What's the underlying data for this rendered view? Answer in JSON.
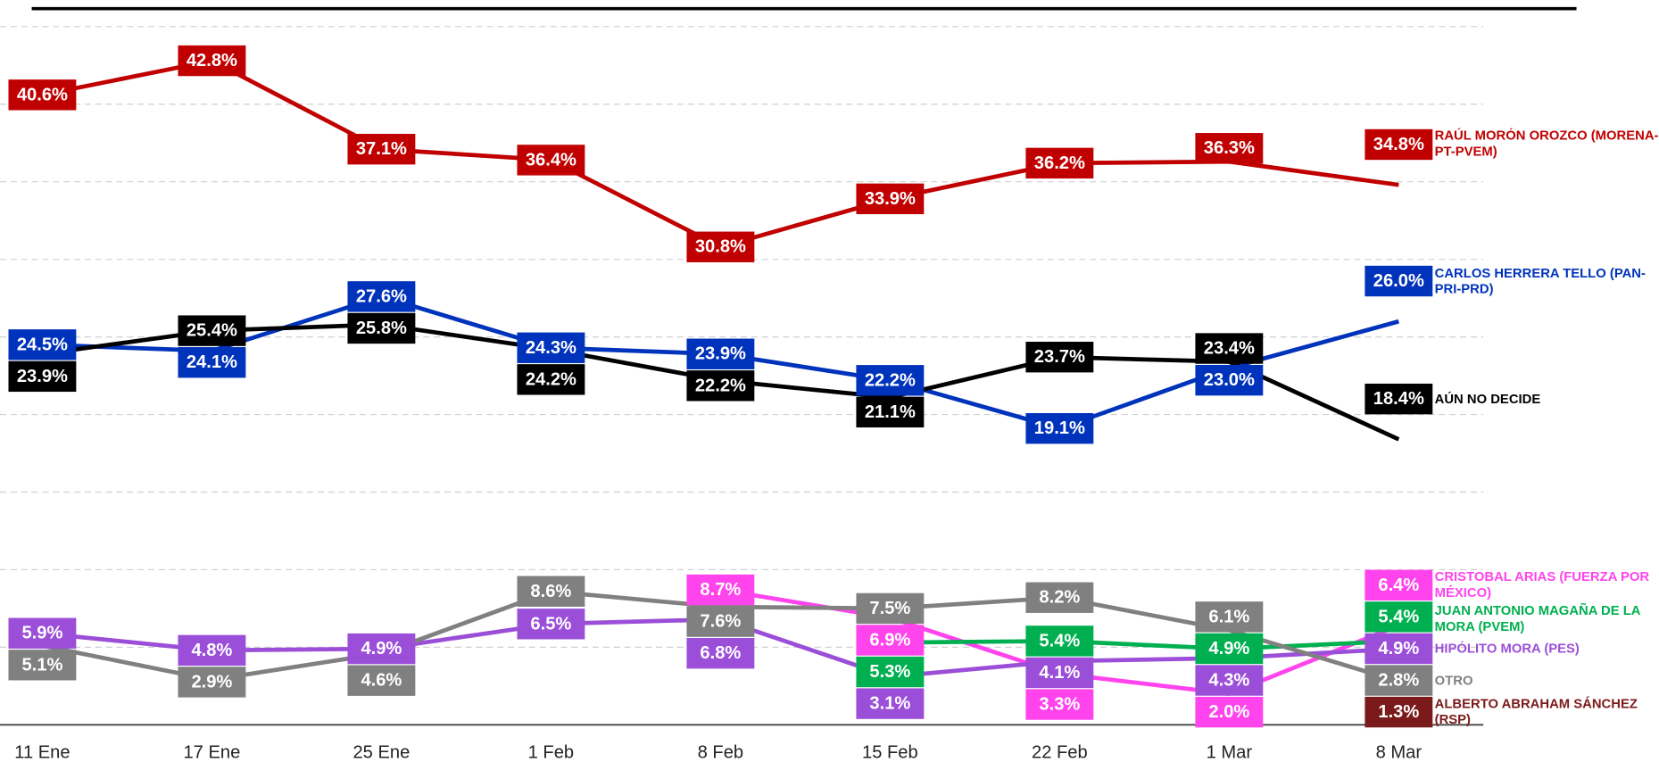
{
  "chart_data": {
    "type": "line",
    "categories": [
      "11 Ene",
      "17 Ene",
      "25 Ene",
      "1 Feb",
      "8 Feb",
      "15 Feb",
      "22 Feb",
      "1 Mar",
      "8 Mar"
    ],
    "ylim": [
      0,
      45
    ],
    "yticks": [
      0,
      5,
      10,
      15,
      20,
      25,
      30,
      35,
      40,
      45
    ],
    "grid": true,
    "series": [
      {
        "name": "RAÚL MORÓN OROZCO (MORENA-PT-PVEM)",
        "color": "#c00000",
        "values": [
          40.6,
          42.8,
          37.1,
          36.4,
          30.8,
          33.9,
          36.2,
          36.3,
          34.8
        ],
        "value_labels": [
          "40.6%",
          "42.8%",
          "37.1%",
          "36.4%",
          "30.8%",
          "33.9%",
          "36.2%",
          "36.3%",
          "34.8%"
        ]
      },
      {
        "name": "CARLOS HERRERA TELLO (PAN-PRI-PRD)",
        "color": "#0033bb",
        "values": [
          24.5,
          24.1,
          27.6,
          24.3,
          23.9,
          22.2,
          19.1,
          23.0,
          26.0
        ],
        "value_labels": [
          "24.5%",
          "24.1%",
          "27.6%",
          "24.3%",
          "23.9%",
          "22.2%",
          "19.1%",
          "23.0%",
          "26.0%"
        ]
      },
      {
        "name": "AÚN NO DECIDE",
        "color": "#000000",
        "values": [
          23.9,
          25.4,
          25.8,
          24.2,
          22.2,
          21.1,
          23.7,
          23.4,
          18.4
        ],
        "value_labels": [
          "23.9%",
          "25.4%",
          "25.8%",
          "24.2%",
          "22.2%",
          "21.1%",
          "23.7%",
          "23.4%",
          "18.4%"
        ]
      },
      {
        "name": "CRISTOBAL ARIAS (FUERZA POR MÉXICO)",
        "color": "#ff44ee",
        "values": [
          null,
          null,
          null,
          null,
          8.7,
          6.9,
          3.3,
          2.0,
          6.4
        ],
        "value_labels": [
          null,
          null,
          null,
          null,
          "8.7%",
          "6.9%",
          "3.3%",
          "2.0%",
          "6.4%"
        ]
      },
      {
        "name": "JUAN ANTONIO MAGAÑA DE LA MORA (PVEM)",
        "color": "#00b050",
        "values": [
          null,
          null,
          null,
          null,
          null,
          5.3,
          5.4,
          4.9,
          5.4
        ],
        "value_labels": [
          null,
          null,
          null,
          null,
          null,
          "5.3%",
          "5.4%",
          "4.9%",
          "5.4%"
        ]
      },
      {
        "name": "HIPÓLITO MORA (PES)",
        "color": "#9b4fd8",
        "values": [
          5.9,
          4.8,
          4.9,
          6.5,
          6.8,
          3.1,
          4.1,
          4.3,
          4.9
        ],
        "value_labels": [
          "5.9%",
          "4.8%",
          "4.9%",
          "6.5%",
          "6.8%",
          "3.1%",
          "4.1%",
          "4.3%",
          "4.9%"
        ]
      },
      {
        "name": "OTRO",
        "color": "#808080",
        "values": [
          5.1,
          2.9,
          4.6,
          8.6,
          7.6,
          7.5,
          8.2,
          6.1,
          2.8
        ],
        "value_labels": [
          "5.1%",
          "2.9%",
          "4.6%",
          "8.6%",
          "7.6%",
          "7.5%",
          "8.2%",
          "6.1%",
          "2.8%"
        ]
      },
      {
        "name": "ALBERTO ABRAHAM SÁNCHEZ (RSP)",
        "color": "#7b1a1a",
        "values": [
          null,
          null,
          null,
          null,
          null,
          null,
          null,
          null,
          1.3
        ],
        "value_labels": [
          null,
          null,
          null,
          null,
          null,
          null,
          null,
          null,
          "1.3%"
        ]
      }
    ]
  }
}
